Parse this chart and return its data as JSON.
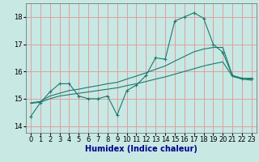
{
  "xlabel": "Humidex (Indice chaleur)",
  "bg_color": "#c8e8e4",
  "grid_color": "#dda0a0",
  "line_color": "#1a7a6e",
  "xlim": [
    -0.5,
    23.5
  ],
  "ylim": [
    13.75,
    18.5
  ],
  "yticks": [
    14,
    15,
    16,
    17,
    18
  ],
  "xticks": [
    0,
    1,
    2,
    3,
    4,
    5,
    6,
    7,
    8,
    9,
    10,
    11,
    12,
    13,
    14,
    15,
    16,
    17,
    18,
    19,
    20,
    21,
    22,
    23
  ],
  "line1_y": [
    14.35,
    14.85,
    15.25,
    15.55,
    15.55,
    15.1,
    15.0,
    15.0,
    15.1,
    14.4,
    15.3,
    15.5,
    15.85,
    16.5,
    16.45,
    17.85,
    18.0,
    18.15,
    17.95,
    17.0,
    16.7,
    15.85,
    15.75,
    15.75
  ],
  "line2_y": [
    14.85,
    14.9,
    15.1,
    15.2,
    15.3,
    15.35,
    15.42,
    15.48,
    15.55,
    15.6,
    15.72,
    15.83,
    15.95,
    16.08,
    16.2,
    16.38,
    16.55,
    16.72,
    16.82,
    16.88,
    16.88,
    15.85,
    15.75,
    15.72
  ],
  "line3_y": [
    14.83,
    14.87,
    15.0,
    15.1,
    15.15,
    15.2,
    15.25,
    15.3,
    15.35,
    15.4,
    15.48,
    15.55,
    15.63,
    15.72,
    15.8,
    15.9,
    16.0,
    16.1,
    16.2,
    16.28,
    16.35,
    15.82,
    15.72,
    15.68
  ],
  "xlabel_color": "#00008b",
  "xlabel_fontsize": 7,
  "tick_fontsize": 6
}
